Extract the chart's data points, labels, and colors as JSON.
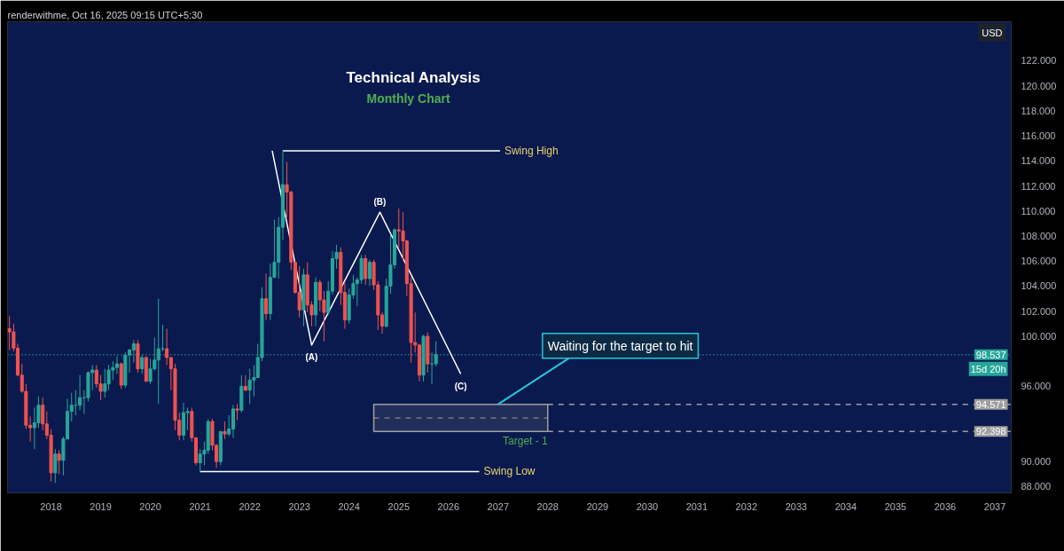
{
  "chart_data": {
    "type": "candlestick",
    "title": "Technical Analysis",
    "subtitle": "Monthly Chart",
    "ylabel": "USD",
    "x": [
      "2017-03",
      "2017-04",
      "2017-05",
      "2017-06",
      "2017-07",
      "2017-08",
      "2017-09",
      "2017-10",
      "2017-11",
      "2017-12",
      "2018-01",
      "2018-02",
      "2018-03",
      "2018-04",
      "2018-05",
      "2018-06",
      "2018-07",
      "2018-08",
      "2018-09",
      "2018-10",
      "2018-11",
      "2018-12",
      "2019-01",
      "2019-02",
      "2019-03",
      "2019-04",
      "2019-05",
      "2019-06",
      "2019-07",
      "2019-08",
      "2019-09",
      "2019-10",
      "2019-11",
      "2019-12",
      "2020-01",
      "2020-02",
      "2020-03",
      "2020-04",
      "2020-05",
      "2020-06",
      "2020-07",
      "2020-08",
      "2020-09",
      "2020-10",
      "2020-11",
      "2020-12",
      "2021-01",
      "2021-02",
      "2021-03",
      "2021-04",
      "2021-05",
      "2021-06",
      "2021-07",
      "2021-08",
      "2021-09",
      "2021-10",
      "2021-11",
      "2021-12",
      "2022-01",
      "2022-02",
      "2022-03",
      "2022-04",
      "2022-05",
      "2022-06",
      "2022-07",
      "2022-08",
      "2022-09",
      "2022-10",
      "2022-11",
      "2022-12",
      "2023-01",
      "2023-02",
      "2023-03",
      "2023-04",
      "2023-05",
      "2023-06",
      "2023-07",
      "2023-08",
      "2023-09",
      "2023-10",
      "2023-11",
      "2023-12",
      "2024-01",
      "2024-02",
      "2024-03",
      "2024-04",
      "2024-05",
      "2024-06",
      "2024-07",
      "2024-08",
      "2024-09",
      "2024-10",
      "2024-11",
      "2024-12",
      "2025-01",
      "2025-02",
      "2025-03",
      "2025-04",
      "2025-05",
      "2025-06",
      "2025-07",
      "2025-08",
      "2025-09",
      "2025-10"
    ],
    "ohlc": [
      [
        100.6,
        101.6,
        98.9,
        100.35
      ],
      [
        100.35,
        101.0,
        98.8,
        99.05
      ],
      [
        99.05,
        99.4,
        96.8,
        96.9
      ],
      [
        96.9,
        97.8,
        95.5,
        95.6
      ],
      [
        95.6,
        96.2,
        92.6,
        92.9
      ],
      [
        92.9,
        93.6,
        91.6,
        92.7
      ],
      [
        92.7,
        94.3,
        91.0,
        93.1
      ],
      [
        93.1,
        95.2,
        92.7,
        94.5
      ],
      [
        94.5,
        95.1,
        92.5,
        93.0
      ],
      [
        93.0,
        94.0,
        91.8,
        92.1
      ],
      [
        92.1,
        92.6,
        88.4,
        89.1
      ],
      [
        89.1,
        91.0,
        88.3,
        90.6
      ],
      [
        90.6,
        90.9,
        89.0,
        90.1
      ],
      [
        90.1,
        92.0,
        88.9,
        91.8
      ],
      [
        91.8,
        95.0,
        91.8,
        94.0
      ],
      [
        94.0,
        95.5,
        93.2,
        94.5
      ],
      [
        94.5,
        95.7,
        93.7,
        94.5
      ],
      [
        94.5,
        96.9,
        94.1,
        95.1
      ],
      [
        95.1,
        95.7,
        93.8,
        95.1
      ],
      [
        95.1,
        97.2,
        94.8,
        97.1
      ],
      [
        97.1,
        97.7,
        95.7,
        97.3
      ],
      [
        97.3,
        97.7,
        95.9,
        96.2
      ],
      [
        96.2,
        96.9,
        94.9,
        95.6
      ],
      [
        95.6,
        97.4,
        95.1,
        96.2
      ],
      [
        96.2,
        97.7,
        95.7,
        97.3
      ],
      [
        97.3,
        98.0,
        96.5,
        97.5
      ],
      [
        97.5,
        98.4,
        97.0,
        97.8
      ],
      [
        97.8,
        97.9,
        95.8,
        96.1
      ],
      [
        96.1,
        98.7,
        95.9,
        98.5
      ],
      [
        98.5,
        99.0,
        97.1,
        98.9
      ],
      [
        98.9,
        99.7,
        97.9,
        99.4
      ],
      [
        99.4,
        99.7,
        97.1,
        97.4
      ],
      [
        97.4,
        98.5,
        97.0,
        98.3
      ],
      [
        98.3,
        98.4,
        96.4,
        96.4
      ],
      [
        96.4,
        98.2,
        96.2,
        97.4
      ],
      [
        97.4,
        99.9,
        97.3,
        98.1
      ],
      [
        98.1,
        103.0,
        94.6,
        99.0
      ],
      [
        99.0,
        100.9,
        98.8,
        99.0
      ],
      [
        99.0,
        100.6,
        97.7,
        98.3
      ],
      [
        98.3,
        98.3,
        95.7,
        97.4
      ],
      [
        97.4,
        97.8,
        92.5,
        93.3
      ],
      [
        93.3,
        93.9,
        91.7,
        92.1
      ],
      [
        92.1,
        94.7,
        91.7,
        93.9
      ],
      [
        93.9,
        94.3,
        92.5,
        94.0
      ],
      [
        94.0,
        94.3,
        91.6,
        91.9
      ],
      [
        91.9,
        91.9,
        89.7,
        89.9
      ],
      [
        89.9,
        91.0,
        89.2,
        90.6
      ],
      [
        90.6,
        91.6,
        89.7,
        90.9
      ],
      [
        90.9,
        93.4,
        90.6,
        93.2
      ],
      [
        93.2,
        93.4,
        90.9,
        91.3
      ],
      [
        91.3,
        91.4,
        89.5,
        90.0
      ],
      [
        90.0,
        92.4,
        89.7,
        92.4
      ],
      [
        92.4,
        93.2,
        91.8,
        92.2
      ],
      [
        92.2,
        93.7,
        92.0,
        92.6
      ],
      [
        92.6,
        94.5,
        91.9,
        94.2
      ],
      [
        94.2,
        94.6,
        93.3,
        94.1
      ],
      [
        94.1,
        96.9,
        93.9,
        96.0
      ],
      [
        96.0,
        96.9,
        95.6,
        95.7
      ],
      [
        95.7,
        97.4,
        94.6,
        96.5
      ],
      [
        96.5,
        97.7,
        95.2,
        96.7
      ],
      [
        96.7,
        99.4,
        96.7,
        98.3
      ],
      [
        98.3,
        103.9,
        98.0,
        103.0
      ],
      [
        103.0,
        105.0,
        101.3,
        101.8
      ],
      [
        101.8,
        105.8,
        101.3,
        104.7
      ],
      [
        104.7,
        109.3,
        104.7,
        105.9
      ],
      [
        105.9,
        109.5,
        104.6,
        108.7
      ],
      [
        108.7,
        114.8,
        107.7,
        112.1
      ],
      [
        112.1,
        113.9,
        109.5,
        111.5
      ],
      [
        111.5,
        111.6,
        105.3,
        105.9
      ],
      [
        105.9,
        106.0,
        103.4,
        103.5
      ],
      [
        103.5,
        105.6,
        101.5,
        102.1
      ],
      [
        102.1,
        105.4,
        100.8,
        104.9
      ],
      [
        104.9,
        105.9,
        101.9,
        102.5
      ],
      [
        102.5,
        102.8,
        100.8,
        101.7
      ],
      [
        101.7,
        104.7,
        100.8,
        104.3
      ],
      [
        104.3,
        104.5,
        102.0,
        102.9
      ],
      [
        102.9,
        103.6,
        99.6,
        101.9
      ],
      [
        101.9,
        104.4,
        101.7,
        103.6
      ],
      [
        103.6,
        106.8,
        103.3,
        106.2
      ],
      [
        106.2,
        107.3,
        105.4,
        106.7
      ],
      [
        106.7,
        107.1,
        102.5,
        103.5
      ],
      [
        103.5,
        104.3,
        100.6,
        101.3
      ],
      [
        101.3,
        103.8,
        101.0,
        103.3
      ],
      [
        103.3,
        104.9,
        103.0,
        104.2
      ],
      [
        104.2,
        104.7,
        102.4,
        104.5
      ],
      [
        104.5,
        106.5,
        104.2,
        106.2
      ],
      [
        106.2,
        106.5,
        104.1,
        104.6
      ],
      [
        104.6,
        106.1,
        104.0,
        105.9
      ],
      [
        105.9,
        106.1,
        103.7,
        104.1
      ],
      [
        104.1,
        104.4,
        100.5,
        101.7
      ],
      [
        101.7,
        101.9,
        100.2,
        100.8
      ],
      [
        100.8,
        104.6,
        100.7,
        104.0
      ],
      [
        104.0,
        108.1,
        103.4,
        105.7
      ],
      [
        105.7,
        108.6,
        105.4,
        108.5
      ],
      [
        108.5,
        110.2,
        107.0,
        108.4
      ],
      [
        108.4,
        109.9,
        106.1,
        107.6
      ],
      [
        107.6,
        107.7,
        103.2,
        104.2
      ],
      [
        104.2,
        104.7,
        97.9,
        99.5
      ],
      [
        99.5,
        101.9,
        98.7,
        99.3
      ],
      [
        99.3,
        99.4,
        96.4,
        96.9
      ],
      [
        96.9,
        100.1,
        96.4,
        100.0
      ],
      [
        100.0,
        100.3,
        97.1,
        97.8
      ],
      [
        97.8,
        98.7,
        96.2,
        97.8
      ],
      [
        97.8,
        99.6,
        97.6,
        98.537
      ]
    ],
    "series": [
      {
        "type": "line",
        "color": "#ffffff",
        "x": [
          "2022-06-15",
          "2023-04-01",
          "2024-08-15",
          "2026-04-01"
        ],
        "values": [
          114.8,
          99.3,
          109.9,
          97.0
        ]
      },
      {
        "type": "line",
        "name": "Swing High",
        "color": "#ffffff",
        "x": [
          "2022-09-01",
          "2027-01-15"
        ],
        "values": [
          114.8,
          114.8
        ]
      },
      {
        "type": "line",
        "name": "Swing Low",
        "color": "#ffffff",
        "x": [
          "2021-01-01",
          "2026-08-15"
        ],
        "values": [
          89.2,
          89.2
        ]
      },
      {
        "type": "line",
        "name": "Target - 1",
        "color": "#9e9e9e",
        "line_style": "dashed",
        "x": [
          "2024-07-01",
          "2028-01-01"
        ],
        "values": [
          93.48,
          93.48
        ],
        "lower": [
          92.398,
          92.398
        ],
        "upper": [
          94.571,
          94.571
        ]
      },
      {
        "type": "line",
        "color": "#9e9e9e",
        "line_style": "dashed",
        "x": [
          "2028-01-01",
          "2037-05-01"
        ],
        "values": [
          94.571,
          94.571
        ],
        "value_labels": [
          null,
          "94.571"
        ]
      },
      {
        "type": "line",
        "color": "#9e9e9e",
        "line_style": "dashed",
        "x": [
          "2028-01-01",
          "2037-05-01"
        ],
        "values": [
          92.398,
          92.398
        ],
        "value_labels": [
          null,
          "92.398"
        ]
      }
    ],
    "xlim": [
      "2017-02-15",
      "2037-05-01"
    ],
    "xticks": [
      {
        "value": "2018",
        "label": "2018"
      },
      {
        "value": "2019",
        "label": "2019"
      },
      {
        "value": "2020",
        "label": "2020"
      },
      {
        "value": "2021",
        "label": "2021"
      },
      {
        "value": "2022",
        "label": "2022"
      },
      {
        "value": "2023",
        "label": "2023"
      },
      {
        "value": "2024",
        "label": "2024"
      },
      {
        "value": "2025",
        "label": "2025"
      },
      {
        "value": "2026",
        "label": "2026"
      },
      {
        "value": "2027",
        "label": "2027"
      },
      {
        "value": "2028",
        "label": "2028"
      },
      {
        "value": "2029",
        "label": "2029"
      },
      {
        "value": "2030",
        "label": "2030"
      },
      {
        "value": "2031",
        "label": "2031"
      },
      {
        "value": "2032",
        "label": "2032"
      },
      {
        "value": "2033",
        "label": "2033"
      },
      {
        "value": "2034",
        "label": "2034"
      },
      {
        "value": "2035",
        "label": "2035"
      },
      {
        "value": "2036",
        "label": "2036"
      },
      {
        "value": "2037",
        "label": "2037"
      }
    ],
    "ylim": [
      87.5,
      125.1
    ],
    "yticks": [
      {
        "value": 88,
        "label": "88.000"
      },
      {
        "value": 90,
        "label": "90.000"
      },
      {
        "value": 96,
        "label": "96.000"
      },
      {
        "value": 100,
        "label": "100.000"
      },
      {
        "value": 102,
        "label": "102.000"
      },
      {
        "value": 104,
        "label": "104.000"
      },
      {
        "value": 106,
        "label": "106.000"
      },
      {
        "value": 108,
        "label": "108.000"
      },
      {
        "value": 110,
        "label": "110.000"
      },
      {
        "value": 112,
        "label": "112.000"
      },
      {
        "value": 114,
        "label": "114.000"
      },
      {
        "value": 116,
        "label": "116.000"
      },
      {
        "value": 118,
        "label": "118.000"
      },
      {
        "value": 120,
        "label": "120.000"
      },
      {
        "value": 122,
        "label": "122.000"
      }
    ],
    "ref_lines": [
      {
        "axis": "y",
        "value": 98.537,
        "label": "98.537",
        "color": "#26a69a",
        "line_style": "dotted"
      }
    ],
    "annotations": [
      "renderwithme, Oct 16, 2025 09:15 UTC+5:30",
      "15d 20h",
      {
        "text": "(A)",
        "x": "2023-04-01",
        "y": 99.3
      },
      {
        "text": "(B)",
        "x": "2024-08-15",
        "y": 109.9
      },
      {
        "text": "(C)",
        "x": "2026-04-01",
        "y": 97.0
      },
      {
        "text": "Waiting for the target to hit",
        "x": "2027-01-01",
        "y": 94.571
      }
    ]
  }
}
